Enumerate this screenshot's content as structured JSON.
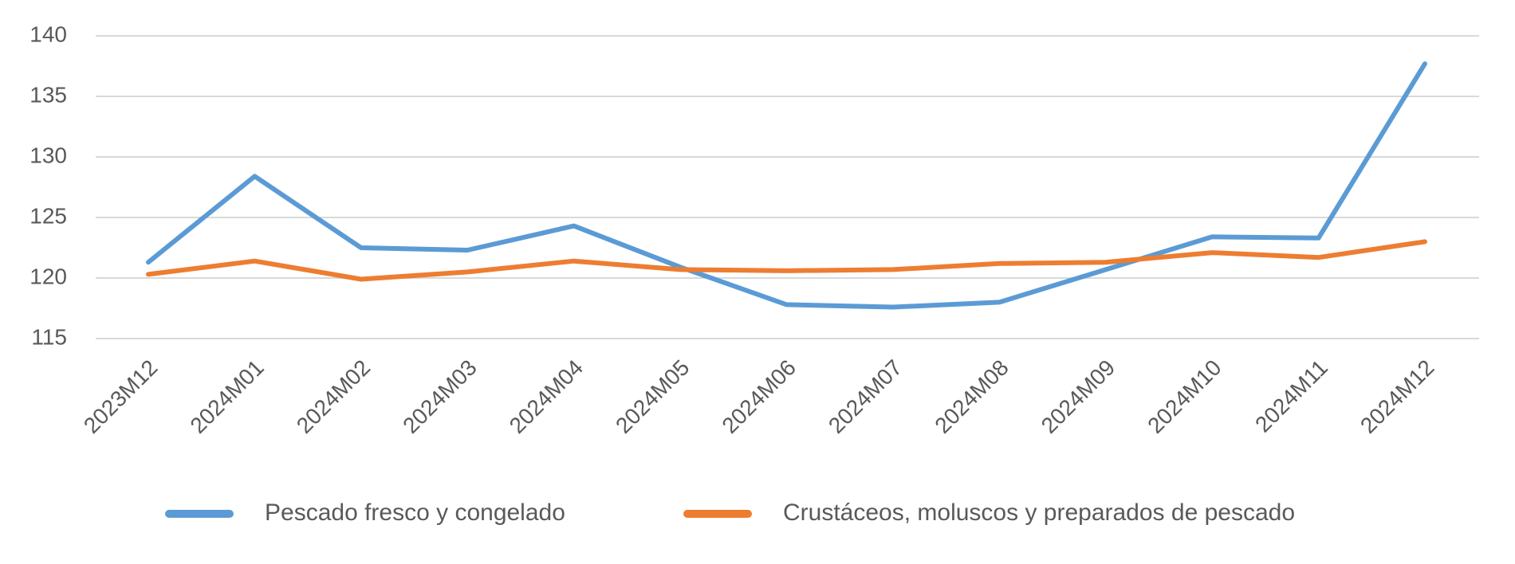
{
  "chart_data": {
    "type": "line",
    "title": "",
    "xlabel": "",
    "ylabel": "",
    "categories": [
      "2023M12",
      "2024M01",
      "2024M02",
      "2024M03",
      "2024M04",
      "2024M05",
      "2024M06",
      "2024M07",
      "2024M08",
      "2024M09",
      "2024M10",
      "2024M11",
      "2024M12"
    ],
    "ylim": [
      115,
      140
    ],
    "yticks": [
      115,
      120,
      125,
      130,
      135,
      140
    ],
    "grid": true,
    "legend_position": "bottom",
    "series": [
      {
        "name": "Pescado fresco y congelado",
        "color": "#5b9bd5",
        "values": [
          121.3,
          128.4,
          122.5,
          122.3,
          124.3,
          120.9,
          117.8,
          117.6,
          118.0,
          120.7,
          123.4,
          123.3,
          137.7
        ]
      },
      {
        "name": "Crustáceos, moluscos y preparados de pescado",
        "color": "#ed7d31",
        "values": [
          120.3,
          121.4,
          119.9,
          120.5,
          121.4,
          120.7,
          120.6,
          120.7,
          121.2,
          121.3,
          122.1,
          121.7,
          123.0
        ]
      }
    ]
  }
}
